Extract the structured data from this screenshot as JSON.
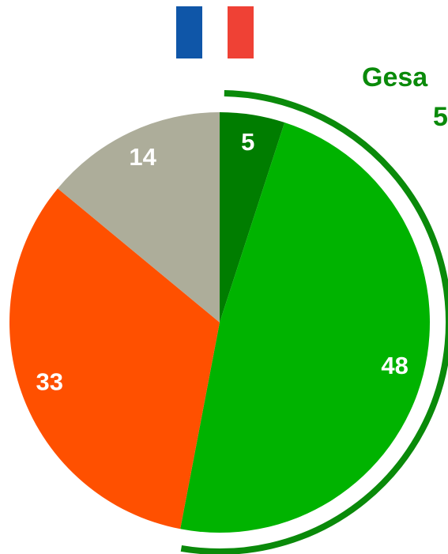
{
  "chart_data": {
    "type": "pie",
    "values": [
      5,
      48,
      33,
      14
    ],
    "colors": [
      "#007d00",
      "#00b300",
      "#ff5000",
      "#adad9a"
    ],
    "annotations": [
      "Gesa",
      "5"
    ],
    "bracket_color": "#0a8a0a"
  }
}
